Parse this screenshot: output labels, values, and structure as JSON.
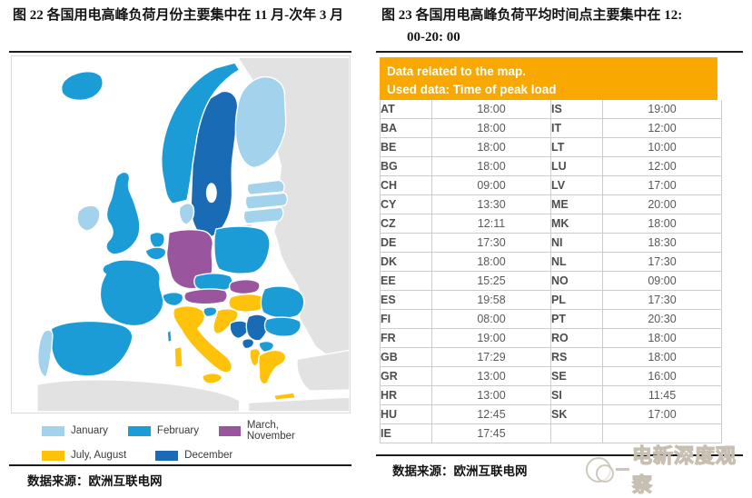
{
  "figure22": {
    "title": "图 22 各国用电高峰负荷月份主要集中在 11 月-次年 3 月",
    "source": "数据来源：欧洲互联电网"
  },
  "figure23": {
    "title_line1": "图 23 各国用电高峰负荷平均时间点主要集中在 12:",
    "title_line2": "00-20: 00",
    "header_line1": "Data related to the map.",
    "header_line2": "Used data: Time of peak load",
    "header_bg": "#F8A800",
    "source": "数据来源：欧洲互联电网"
  },
  "watermark": {
    "text": "电新深度观察"
  },
  "chart_data": [
    {
      "type": "heatmap",
      "subtype": "choropleth-map-of-europe",
      "title": "图 22 各国用电高峰负荷月份主要集中在 11 月-次年 3 月",
      "legend_position": "bottom",
      "legend": [
        {
          "key": "jan",
          "label": "January",
          "color": "#A3D2EC"
        },
        {
          "key": "feb",
          "label": "February",
          "color": "#1B9CD7"
        },
        {
          "key": "mar_nov",
          "label": "March, November",
          "color": "#99569F"
        },
        {
          "key": "jul_aug",
          "label": "July, August",
          "color": "#FFC20A"
        },
        {
          "key": "dec",
          "label": "December",
          "color": "#1A6BB5"
        }
      ],
      "palette": {
        "jan": "#A3D2EC",
        "feb": "#1B9CD7",
        "mar_nov": "#99569F",
        "jul_aug": "#FFC20A",
        "dec": "#1A6BB5",
        "other": "#E2E2E2"
      },
      "countries": {
        "IS": "feb",
        "NO": "feb",
        "SE": "dec",
        "FI": "jan",
        "EE": "jan",
        "LV": "jan",
        "LT": "jan",
        "DK": "jan",
        "GB": "feb",
        "IE": "jan",
        "NL": "feb",
        "BE": "feb",
        "DE": "mar_nov",
        "PL": "feb",
        "CZ": "feb",
        "AT": "mar_nov",
        "SK": "mar_nov",
        "HU": "jul_aug",
        "CH": "feb",
        "FR": "feb",
        "ES": "feb",
        "PT": "jan",
        "IT": "jul_aug",
        "SI": "feb",
        "HR": "jul_aug",
        "BA": "dec",
        "RS": "dec",
        "ME": "dec",
        "AL": "jul_aug",
        "MK": "feb",
        "RO": "feb",
        "BG": "feb",
        "GR": "jul_aug",
        "CORSICA": "feb",
        "SARDINIA": "jul_aug",
        "SICILY": "jul_aug",
        "CRETE": "jul_aug",
        "EAST": "other",
        "TURKEY": "other",
        "KALININGRAD": "other",
        "AFRICA_W": "other",
        "AFRICA_E": "other"
      }
    },
    {
      "type": "table",
      "title": "图 23 各国用电高峰负荷平均时间点主要集中在 12:00-20: 00",
      "header": [
        "Data related to the map.",
        "Used data: Time of peak load"
      ],
      "rows": [
        [
          "AT",
          "18:00",
          "IS",
          "19:00"
        ],
        [
          "BA",
          "18:00",
          "IT",
          "12:00"
        ],
        [
          "BE",
          "18:00",
          "LT",
          "10:00"
        ],
        [
          "BG",
          "18:00",
          "LU",
          "12:00"
        ],
        [
          "CH",
          "09:00",
          "LV",
          "17:00"
        ],
        [
          "CY",
          "13:30",
          "ME",
          "20:00"
        ],
        [
          "CZ",
          "12:11",
          "MK",
          "18:00"
        ],
        [
          "DE",
          "17:30",
          "NI",
          "18:30"
        ],
        [
          "DK",
          "18:00",
          "NL",
          "17:30"
        ],
        [
          "EE",
          "15:25",
          "NO",
          "09:00"
        ],
        [
          "ES",
          "19:58",
          "PL",
          "17:30"
        ],
        [
          "FI",
          "08:00",
          "PT",
          "20:30"
        ],
        [
          "FR",
          "19:00",
          "RO",
          "18:00"
        ],
        [
          "GB",
          "17:29",
          "RS",
          "18:00"
        ],
        [
          "GR",
          "13:00",
          "SE",
          "16:00"
        ],
        [
          "HR",
          "13:00",
          "SI",
          "11:45"
        ],
        [
          "HU",
          "12:45",
          "SK",
          "17:00"
        ],
        [
          "IE",
          "17:45",
          "",
          ""
        ]
      ]
    }
  ]
}
